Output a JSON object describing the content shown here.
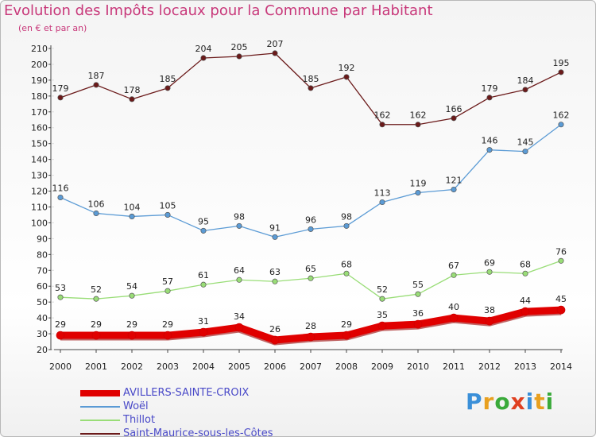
{
  "header": {
    "title": "Evolution des Impôts locaux pour la Commune par Habitant",
    "subtitle": "(en € et par an)"
  },
  "logo": {
    "letters": [
      "P",
      "r",
      "o",
      "x",
      "i",
      "t",
      "i"
    ],
    "colors": [
      "#3a8fd8",
      "#e8a020",
      "#3aaa3a",
      "#e04020",
      "#3a8fd8",
      "#e8a020",
      "#3aaa3a"
    ]
  },
  "chart_data": {
    "type": "line",
    "title": "Evolution des Impôts locaux pour la Commune par Habitant",
    "subtitle": "(en € et par an)",
    "xlabel": "",
    "ylabel": "",
    "ylim": [
      20,
      210
    ],
    "yticks": [
      20,
      30,
      40,
      50,
      60,
      70,
      80,
      90,
      100,
      110,
      120,
      130,
      140,
      150,
      160,
      170,
      180,
      190,
      200,
      210
    ],
    "grid": false,
    "legend": "bottom-left",
    "categories": [
      "2000",
      "2001",
      "2002",
      "2003",
      "2004",
      "2005",
      "2006",
      "2007",
      "2008",
      "2009",
      "2010",
      "2011",
      "2012",
      "2013",
      "2014"
    ],
    "series": [
      {
        "name": "AVILLERS-SAINTE-CROIX",
        "color": "#e00000",
        "values": [
          29,
          29,
          29,
          29,
          31,
          34,
          26,
          28,
          29,
          35,
          36,
          40,
          38,
          44,
          45
        ]
      },
      {
        "name": "Woël",
        "color": "#5b9bd5",
        "values": [
          116,
          106,
          104,
          105,
          95,
          98,
          91,
          96,
          98,
          113,
          119,
          121,
          146,
          145,
          162
        ]
      },
      {
        "name": "Thillot",
        "color": "#99dd77",
        "values": [
          53,
          52,
          54,
          57,
          61,
          64,
          63,
          65,
          68,
          52,
          55,
          67,
          69,
          68,
          76
        ]
      },
      {
        "name": "Saint-Maurice-sous-les-Côtes",
        "color": "#6b1a1a",
        "values": [
          179,
          187,
          178,
          185,
          204,
          205,
          207,
          185,
          192,
          162,
          162,
          166,
          179,
          184,
          195
        ]
      }
    ]
  }
}
